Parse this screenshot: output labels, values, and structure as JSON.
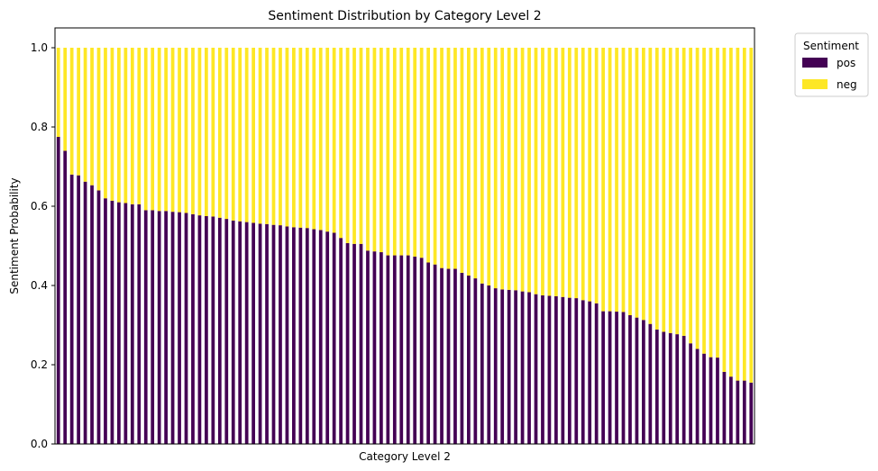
{
  "chart_data": {
    "type": "bar",
    "stacked": true,
    "title": "Sentiment Distribution by Category Level 2",
    "xlabel": "Category Level 2",
    "ylabel": "Sentiment Probability",
    "ylim": [
      0,
      1.05
    ],
    "yticks": [
      "0.0",
      "0.2",
      "0.4",
      "0.6",
      "0.8",
      "1.0"
    ],
    "legend": {
      "title": "Sentiment",
      "placement": "outside-top-right"
    },
    "grid": false,
    "series": [
      {
        "name": "pos",
        "color": "#440154",
        "values": [
          0.775,
          0.74,
          0.68,
          0.678,
          0.662,
          0.653,
          0.64,
          0.62,
          0.614,
          0.61,
          0.608,
          0.605,
          0.605,
          0.59,
          0.59,
          0.588,
          0.588,
          0.586,
          0.585,
          0.583,
          0.58,
          0.577,
          0.575,
          0.574,
          0.571,
          0.568,
          0.564,
          0.562,
          0.56,
          0.558,
          0.556,
          0.555,
          0.553,
          0.552,
          0.549,
          0.547,
          0.546,
          0.545,
          0.542,
          0.54,
          0.536,
          0.533,
          0.52,
          0.507,
          0.505,
          0.505,
          0.488,
          0.486,
          0.484,
          0.476,
          0.476,
          0.476,
          0.476,
          0.473,
          0.47,
          0.458,
          0.453,
          0.444,
          0.442,
          0.442,
          0.432,
          0.425,
          0.418,
          0.405,
          0.4,
          0.393,
          0.39,
          0.389,
          0.388,
          0.385,
          0.383,
          0.378,
          0.375,
          0.374,
          0.373,
          0.371,
          0.369,
          0.368,
          0.363,
          0.36,
          0.355,
          0.335,
          0.335,
          0.334,
          0.333,
          0.325,
          0.319,
          0.313,
          0.303,
          0.289,
          0.283,
          0.28,
          0.277,
          0.273,
          0.254,
          0.24,
          0.228,
          0.219,
          0.218,
          0.182,
          0.17,
          0.16,
          0.16,
          0.155
        ]
      },
      {
        "name": "neg",
        "color": "#fde725",
        "values": "complement"
      }
    ]
  }
}
